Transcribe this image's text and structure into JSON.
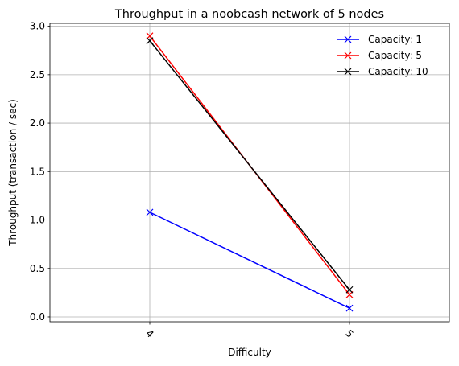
{
  "chart_data": {
    "type": "line",
    "title": "Throughput in a noobcash network of 5 nodes",
    "xlabel": "Difficulty",
    "ylabel": "Throughput (transaction / sec)",
    "categories": [
      "4",
      "5"
    ],
    "x": [
      4,
      5
    ],
    "xlim": [
      3.5,
      5.5
    ],
    "ylim": [
      -0.05,
      3.03
    ],
    "yticks": [
      0.0,
      0.5,
      1.0,
      1.5,
      2.0,
      2.5,
      3.0
    ],
    "ytick_labels": [
      "0.0",
      "0.5",
      "1.0",
      "1.5",
      "2.0",
      "2.5",
      "3.0"
    ],
    "xtick_rotation": 45,
    "grid": true,
    "legend_position": "top-right",
    "marker": "x",
    "series": [
      {
        "name": "Capacity: 1",
        "color": "#0000ff",
        "values": [
          1.08,
          0.09
        ]
      },
      {
        "name": "Capacity: 5",
        "color": "#ff0000",
        "values": [
          2.9,
          0.23
        ]
      },
      {
        "name": "Capacity: 10",
        "color": "#000000",
        "values": [
          2.85,
          0.28
        ]
      }
    ]
  }
}
